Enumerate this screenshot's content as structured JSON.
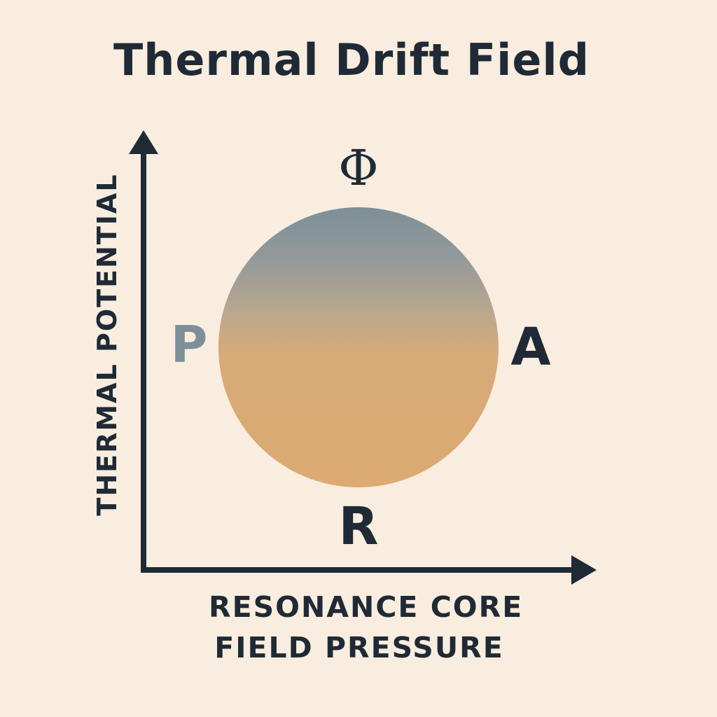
{
  "title": "Thermal Drift Field",
  "axes": {
    "y_label": "THERMAL POTENTIAL",
    "x_label_lines": [
      "RESONANCE CORE",
      "FIELD PRESSURE"
    ]
  },
  "poles": {
    "top": "Φ",
    "left": "P",
    "right": "A",
    "bottom": "R"
  },
  "colors": {
    "background": "#f8eddf",
    "ink": "#1f2a36",
    "sphere_top": "#7c9098",
    "sphere_bottom": "#dcaa72",
    "pole_left": "#7f8f99"
  }
}
